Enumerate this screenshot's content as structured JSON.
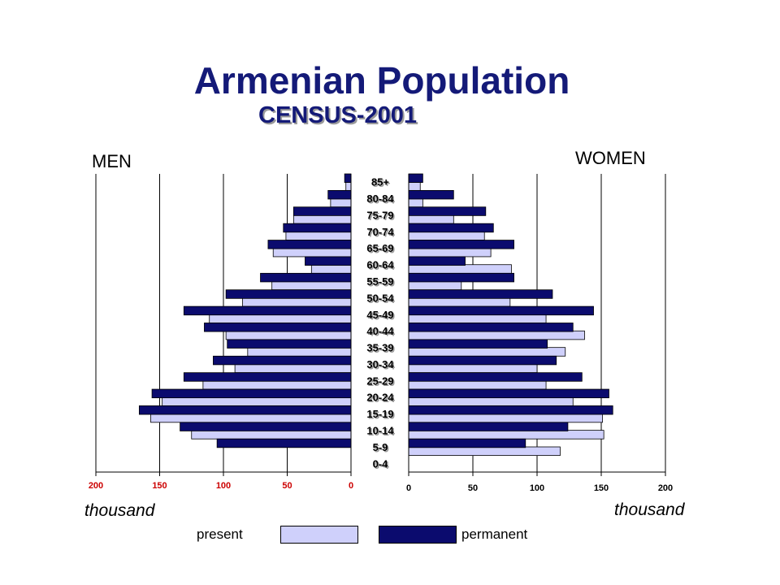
{
  "title": "Armenian Population",
  "subtitle": "CENSUS-2001",
  "men_label": "MEN",
  "women_label": "WOMEN",
  "unit_left": "thousand",
  "unit_right": "thousand",
  "legend": {
    "present_label": "present",
    "permanent_label": "permanent",
    "present_color": "#cfd0fb",
    "permanent_color": "#0b0b6e"
  },
  "colors": {
    "title": "#141a78",
    "men_ticks": "#cc0000",
    "women_ticks": "#000000"
  },
  "chart_data": {
    "type": "bar",
    "orientation": "horizontal-population-pyramid",
    "categories": [
      "85+",
      "80-84",
      "75-79",
      "70-74",
      "65-69",
      "60-64",
      "55-59",
      "50-54",
      "45-49",
      "40-44",
      "35-39",
      "30-34",
      "25-29",
      "20-24",
      "15-19",
      "10-14",
      "5-9",
      "0-4"
    ],
    "men": {
      "series": [
        {
          "name": "permanent",
          "values": [
            5,
            18,
            45,
            53,
            65,
            36,
            71,
            98,
            131,
            115,
            97,
            108,
            131,
            156,
            166,
            134,
            105,
            0
          ]
        },
        {
          "name": "present",
          "values": [
            4,
            16,
            45,
            51,
            61,
            31,
            62,
            85,
            111,
            98,
            81,
            91,
            116,
            148,
            157,
            125,
            0,
            0
          ]
        }
      ],
      "xlim": [
        200,
        0
      ],
      "ticks": [
        200,
        150,
        100,
        50,
        0
      ]
    },
    "women": {
      "series": [
        {
          "name": "permanent",
          "values": [
            11,
            35,
            60,
            66,
            82,
            44,
            82,
            112,
            144,
            128,
            108,
            115,
            135,
            156,
            159,
            124,
            91,
            0
          ]
        },
        {
          "name": "present",
          "values": [
            9,
            11,
            35,
            59,
            64,
            80,
            41,
            79,
            107,
            137,
            122,
            100,
            107,
            128,
            151,
            152,
            118,
            0
          ]
        }
      ],
      "xlim": [
        0,
        200
      ],
      "ticks": [
        0,
        50,
        100,
        150,
        200
      ]
    },
    "grid": true
  }
}
